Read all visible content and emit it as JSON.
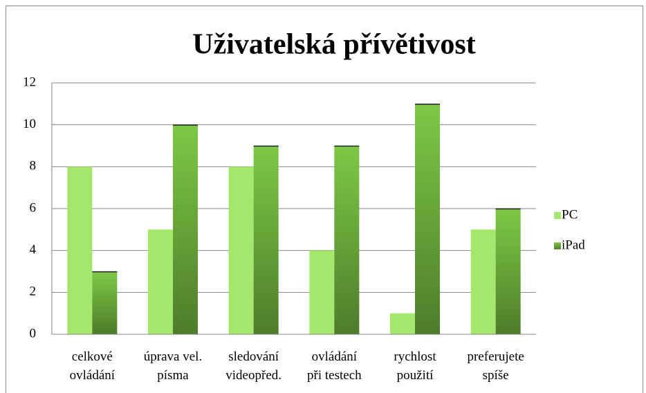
{
  "chart_data": {
    "type": "bar",
    "title": "Uživatelská přívětivost",
    "categories": [
      "celkové\novládání",
      "úprava vel.\npísma",
      "sledování\nvideopřed.",
      "ovládání\npři testech",
      "rychlost\npoužití",
      "preferujete\nspíše"
    ],
    "series": [
      {
        "name": "PC",
        "color": "#a5e66c",
        "values": [
          8,
          5,
          8,
          4,
          1,
          5
        ]
      },
      {
        "name": "iPad",
        "color": "#7dc845",
        "values": [
          3,
          10,
          9,
          9,
          11,
          6
        ]
      }
    ],
    "ylim": [
      0,
      12
    ],
    "yticks": [
      0,
      2,
      4,
      6,
      8,
      10,
      12
    ],
    "grid": true,
    "legend": "right"
  }
}
